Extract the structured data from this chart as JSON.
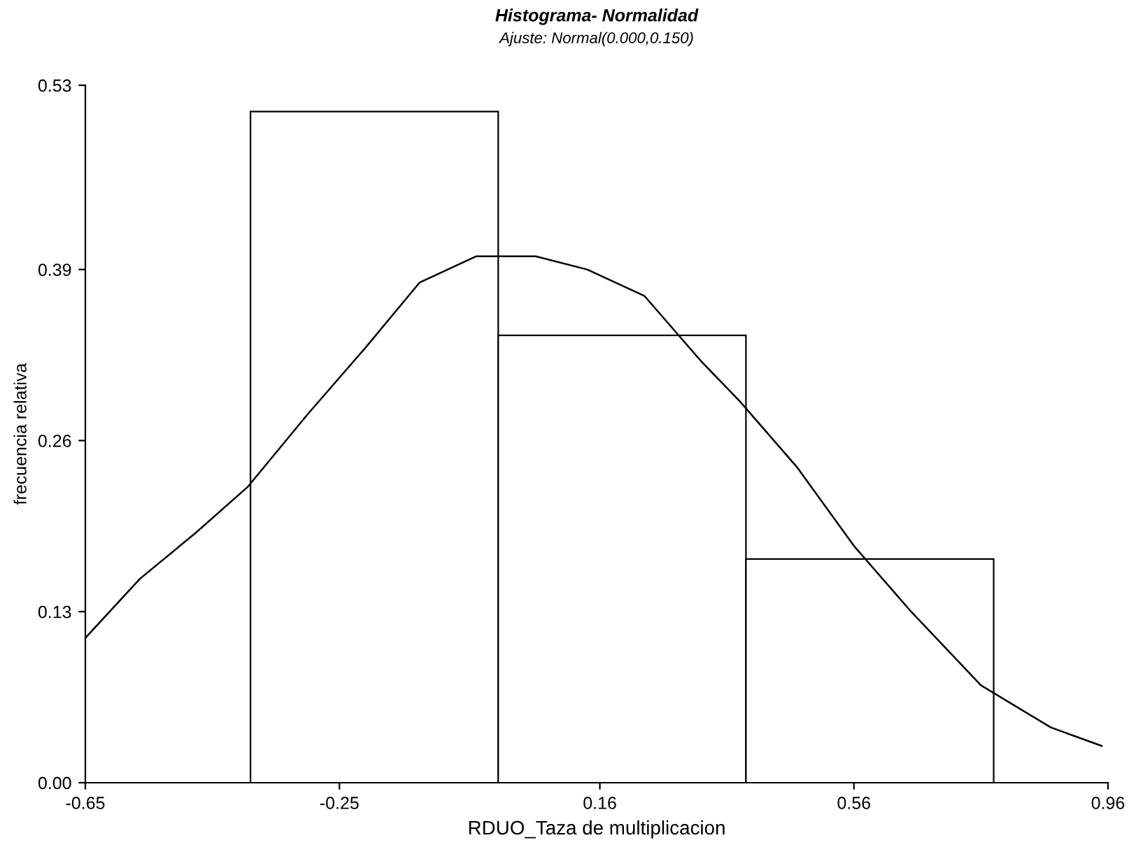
{
  "chart_data": {
    "type": "histogram",
    "title": "Histograma- Normalidad",
    "subtitle": "Ajuste: Normal(0.000,0.150)",
    "xlabel": "RDUO_Taza de multiplicacion",
    "ylabel": "frecuencia relativa",
    "xlim": [
      -0.65,
      0.96
    ],
    "xticks": [
      -0.65,
      -0.25,
      0.16,
      0.56,
      0.96
    ],
    "ylim": [
      0,
      0.53
    ],
    "yticks": [
      {
        "value": 0,
        "label": "0.00"
      },
      0.13,
      0.26,
      0.39,
      0.53
    ],
    "grid": false,
    "legend": false,
    "series": [
      {
        "color": "#ffffff",
        "bins": [
          -0.39,
          0.0,
          0.39,
          0.78
        ],
        "values": [
          0.51,
          0.34,
          0.17
        ]
      },
      {
        "type": "line",
        "color": "#000000",
        "x": [
          -0.65,
          -0.564,
          -0.476,
          -0.394,
          -0.3,
          -0.21,
          -0.124,
          -0.035,
          0.059,
          0.14,
          0.23,
          0.32,
          0.38,
          0.47,
          0.56,
          0.65,
          0.76,
          0.87,
          0.95
        ],
        "values": [
          0.11,
          0.155,
          0.19,
          0.225,
          0.28,
          0.33,
          0.38,
          0.4,
          0.4,
          0.39,
          0.37,
          0.32,
          0.29,
          0.24,
          0.18,
          0.13,
          0.074,
          0.042,
          0.028
        ]
      }
    ]
  }
}
